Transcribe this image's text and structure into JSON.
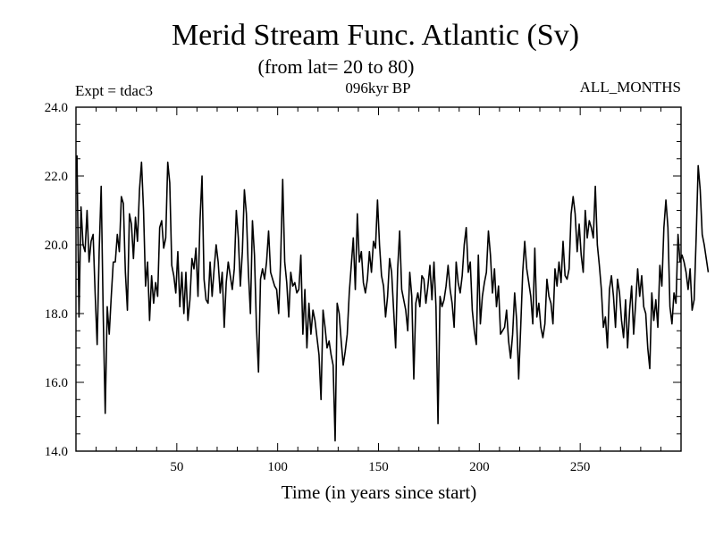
{
  "chart_data": {
    "type": "line",
    "title": "Merid Stream Func. Atlantic (Sv)",
    "subtitle": "(from lat= 20 to 80)",
    "labels": {
      "experiment": "Expt = tdac3",
      "period": "096kyr BP",
      "months": "ALL_MONTHS"
    },
    "xlabel": "Time (in years since start)",
    "ylabel": "",
    "xlim": [
      0,
      300
    ],
    "ylim": [
      14.0,
      24.0
    ],
    "x_ticks": [
      50,
      100,
      150,
      200,
      250
    ],
    "x_tick_labels": [
      "50",
      "100",
      "150",
      "200",
      "250"
    ],
    "y_ticks": [
      14,
      16,
      18,
      20,
      22,
      24
    ],
    "y_tick_labels": [
      "14.0",
      "16.0",
      "18.0",
      "20.0",
      "22.0",
      "24.0"
    ],
    "grid": false,
    "series": [
      {
        "name": "Merid Stream Func. Atlantic",
        "x_start": 0.5,
        "x_step": 1,
        "values": [
          22.6,
          17.9,
          21.1,
          20.0,
          19.8,
          21.0,
          19.5,
          20.1,
          20.3,
          18.6,
          17.1,
          19.8,
          21.7,
          18.0,
          15.1,
          18.2,
          17.4,
          18.5,
          19.5,
          19.5,
          20.3,
          19.8,
          21.4,
          21.2,
          19.2,
          18.1,
          20.9,
          20.6,
          19.6,
          20.8,
          20.1,
          21.6,
          22.4,
          21.0,
          18.8,
          19.5,
          17.8,
          19.1,
          18.3,
          18.9,
          18.5,
          20.5,
          20.7,
          19.9,
          20.2,
          22.4,
          21.8,
          19.4,
          19.1,
          18.6,
          19.8,
          18.2,
          19.2,
          18.0,
          19.2,
          17.8,
          18.4,
          19.6,
          19.3,
          19.9,
          18.5,
          20.7,
          22.0,
          19.0,
          18.4,
          18.3,
          19.5,
          18.5,
          19.3,
          20.0,
          19.5,
          18.6,
          19.2,
          17.6,
          18.9,
          19.5,
          19.1,
          18.7,
          19.3,
          21.0,
          20.2,
          18.8,
          19.8,
          21.6,
          20.9,
          19.2,
          18.0,
          20.7,
          19.7,
          17.6,
          16.3,
          19.0,
          19.3,
          19.0,
          19.5,
          20.4,
          19.2,
          19.0,
          18.8,
          18.7,
          18.0,
          19.6,
          21.9,
          19.5,
          18.9,
          17.9,
          19.2,
          18.8,
          18.9,
          18.6,
          18.7,
          19.7,
          17.4,
          18.7,
          17.0,
          18.3,
          17.4,
          18.1,
          17.8,
          17.3,
          16.8,
          15.5,
          18.1,
          17.6,
          17.0,
          17.2,
          16.8,
          16.5,
          14.3,
          18.3,
          18.0,
          17.2,
          16.5,
          16.9,
          17.4,
          18.6,
          19.4,
          20.2,
          18.7,
          20.9,
          19.5,
          19.8,
          18.9,
          18.6,
          19.0,
          19.8,
          19.2,
          20.1,
          19.9,
          21.3,
          20.0,
          19.1,
          18.8,
          17.9,
          18.5,
          19.6,
          19.2,
          18.1,
          17.0,
          19.3,
          20.4,
          18.7,
          18.4,
          18.1,
          17.5,
          19.2,
          18.5,
          16.1,
          18.3,
          18.6,
          18.2,
          19.1,
          19.0,
          18.3,
          18.8,
          19.4,
          18.4,
          19.5,
          18.2,
          14.8,
          18.5,
          18.2,
          18.4,
          18.8,
          19.4,
          18.7,
          18.3,
          17.6,
          19.5,
          18.9,
          18.6,
          19.1,
          20.0,
          20.5,
          19.2,
          19.5,
          18.1,
          17.5,
          17.1,
          19.7,
          17.7,
          18.5,
          18.9,
          19.2,
          20.4,
          19.7,
          18.6,
          19.3,
          18.2,
          18.8,
          17.4,
          17.5,
          17.6,
          18.1,
          17.2,
          16.7,
          17.4,
          18.6,
          17.8,
          16.1,
          17.6,
          19.2,
          20.1,
          19.3,
          18.9,
          18.5,
          17.7,
          19.9,
          17.9,
          18.3,
          17.6,
          17.3,
          17.7,
          19.0,
          18.5,
          18.3,
          17.7,
          19.3,
          18.8,
          19.5,
          18.9,
          20.1,
          19.1,
          19.0,
          19.3,
          20.9,
          21.4,
          20.9,
          19.8,
          20.6,
          19.7,
          19.2,
          21.0,
          20.2,
          20.7,
          20.5,
          20.2,
          21.7,
          20.0,
          19.4,
          18.7,
          17.6,
          17.9,
          17.0,
          18.7,
          19.1,
          18.5,
          17.6,
          19.0,
          18.6,
          17.8,
          17.3,
          18.4,
          17.0,
          18.1,
          18.8,
          17.4,
          18.3,
          19.3,
          18.5,
          19.1,
          18.2,
          18.0,
          17.0,
          16.4,
          18.6,
          17.8,
          18.4,
          17.6,
          19.4,
          18.8,
          20.5,
          21.3,
          20.5,
          18.2,
          17.7,
          18.6,
          18.3,
          20.3,
          19.5,
          19.7,
          19.5,
          19.2,
          18.7,
          19.3,
          18.1,
          18.4,
          20.2,
          22.3,
          21.6,
          20.3,
          20.0,
          19.6,
          19.2
        ]
      }
    ]
  }
}
